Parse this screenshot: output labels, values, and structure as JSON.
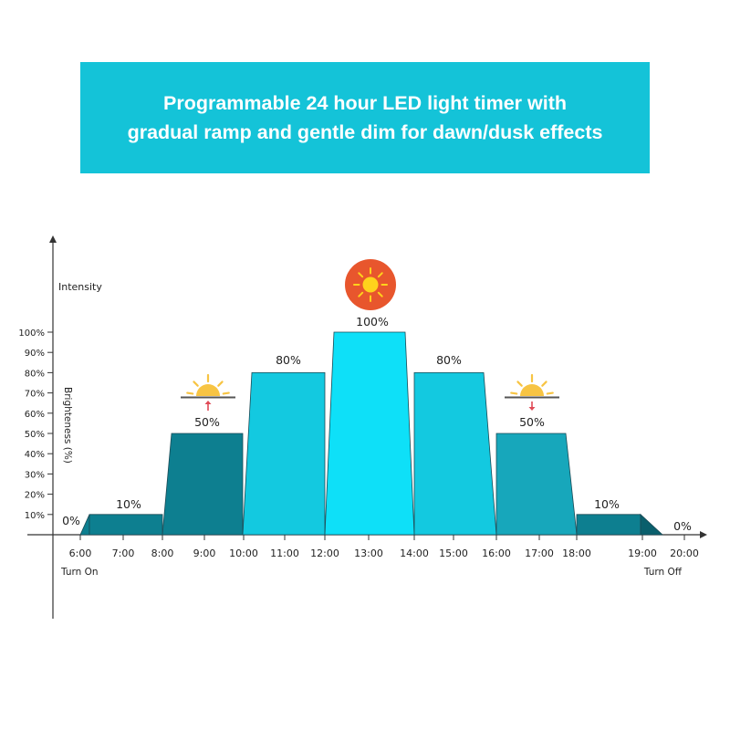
{
  "banner": {
    "title_line1": "Programmable 24 hour LED light timer with",
    "title_line2": "gradual ramp and gentle dim for dawn/dusk effects"
  },
  "chart_data": {
    "type": "area",
    "title": "Programmable 24 hour LED light timer with gradual ramp and gentle dim for dawn/dusk effects",
    "ylabel_top": "Intensity",
    "ylabel_side": "Brighteness  (%)",
    "y_ticks": [
      "100%",
      "90%",
      "80%",
      "70%",
      "60%",
      "50%",
      "40%",
      "30%",
      "20%",
      "10%"
    ],
    "ylim": [
      0,
      100
    ],
    "x_ticks": [
      "6:00",
      "7:00",
      "8:00",
      "9:00",
      "10:00",
      "11:00",
      "12:00",
      "13:00",
      "14:00",
      "15:00",
      "16:00",
      "17:00",
      "18:00",
      "19:00",
      "20:00"
    ],
    "x_notes": {
      "start": "Turn On",
      "end": "Turn Off"
    },
    "segments": [
      {
        "label": "0%",
        "value": 0
      },
      {
        "label": "10%",
        "value": 10
      },
      {
        "label": "50%",
        "value": 50
      },
      {
        "label": "80%",
        "value": 80
      },
      {
        "label": "100%",
        "value": 100
      },
      {
        "label": "80%",
        "value": 80
      },
      {
        "label": "50%",
        "value": 50
      },
      {
        "label": "10%",
        "value": 10
      },
      {
        "label": "0%",
        "value": 0
      }
    ],
    "colors": {
      "dark": "#0d7f90",
      "medium": "#17a7bb",
      "light": "#13c9e0",
      "bright": "#0ee0f8",
      "sun_circle": "#e8562d",
      "sun_core": "#ffd21c",
      "sun_rays": "#f7c443",
      "arrow": "#e04a57"
    },
    "icons": [
      "sun-icon",
      "sunrise-icon",
      "sunset-icon"
    ]
  }
}
